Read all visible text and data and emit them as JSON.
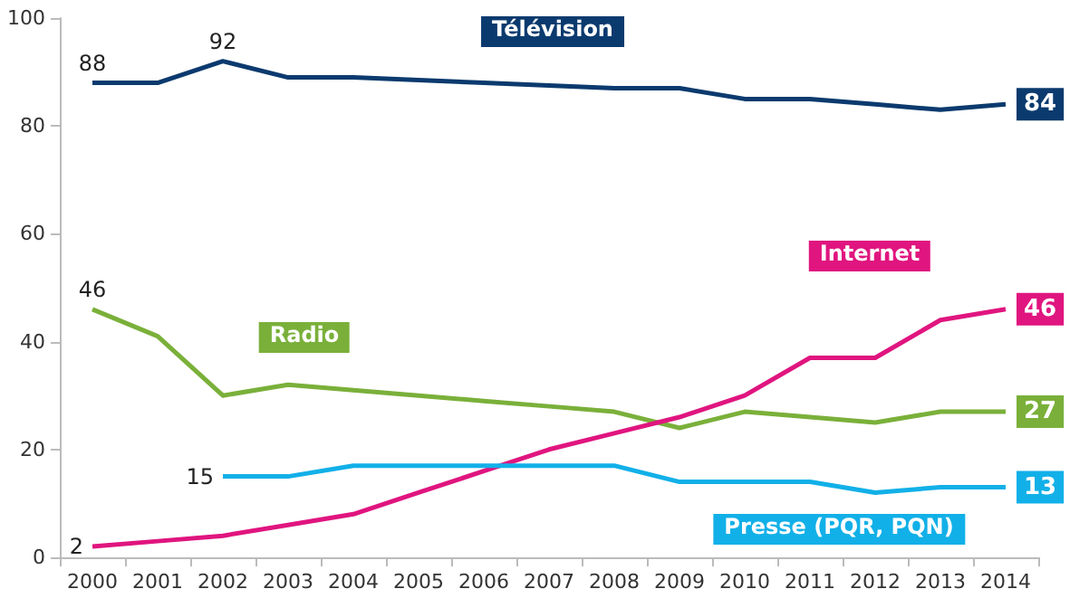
{
  "chart_data": {
    "type": "line",
    "categories": [
      "2000",
      "2001",
      "2002",
      "2003",
      "2004",
      "2005",
      "2006",
      "2007",
      "2008",
      "2009",
      "2010",
      "2011",
      "2012",
      "2013",
      "2014"
    ],
    "series": [
      {
        "name": "Télévision",
        "color": "#0b3a6e",
        "values": [
          88,
          88,
          92,
          89,
          89,
          88.5,
          88,
          87.5,
          87,
          87,
          85,
          85,
          84,
          83,
          84
        ],
        "value_labels": [
          "88",
          null,
          "92",
          null,
          null,
          null,
          null,
          null,
          null,
          null,
          null,
          null,
          null,
          null,
          "84"
        ]
      },
      {
        "name": "Radio",
        "color": "#7ab03a",
        "values": [
          46,
          41,
          30,
          32,
          31,
          30,
          29,
          28,
          27,
          24,
          27,
          26,
          25,
          27,
          27
        ],
        "value_labels": [
          "46",
          null,
          null,
          null,
          null,
          null,
          null,
          null,
          null,
          null,
          null,
          null,
          null,
          null,
          "27"
        ]
      },
      {
        "name": "Internet",
        "color": "#e0157f",
        "values": [
          2,
          3,
          4,
          6,
          8,
          12,
          16,
          20,
          23,
          26,
          30,
          37,
          37,
          44,
          46
        ],
        "value_labels": [
          "2",
          null,
          null,
          null,
          null,
          null,
          null,
          null,
          null,
          null,
          null,
          null,
          null,
          null,
          "46"
        ]
      },
      {
        "name": "Presse (PQR, PQN)",
        "color": "#12b0e8",
        "values": [
          null,
          null,
          15,
          15,
          17,
          17,
          17,
          17,
          17,
          14,
          14,
          14,
          12,
          13,
          13
        ],
        "value_labels": [
          null,
          null,
          "15",
          null,
          null,
          null,
          null,
          null,
          null,
          null,
          null,
          null,
          null,
          null,
          "13"
        ]
      }
    ],
    "ylim": [
      0,
      100
    ],
    "yticks": [
      0,
      20,
      40,
      60,
      80,
      100
    ],
    "grid": false,
    "legend": false,
    "marker": "none",
    "line_style": "solid"
  }
}
